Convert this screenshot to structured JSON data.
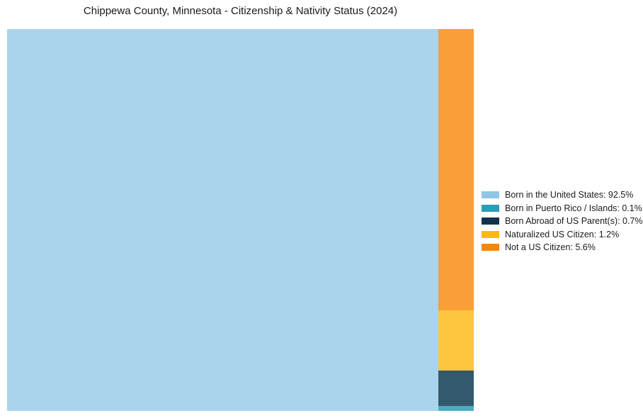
{
  "title": "Chippewa County, Minnesota - Citizenship & Nativity Status (2024)",
  "chart_data": {
    "type": "treemap",
    "title": "Chippewa County, Minnesota - Citizenship & Nativity Status (2024)",
    "legend_position": "center-right",
    "grid": false,
    "rect_alpha_note": "chart rects rendered lighter (~0.8 alpha) than legend swatches",
    "items": [
      {
        "id": "born-in-us",
        "label": "Born in the United States",
        "value": 92.5,
        "unit": "%",
        "legend_label": "Born in the United States: 92.5%",
        "fill_color": "#A9D4EC",
        "legend_color": "#8FC6E2"
      },
      {
        "id": "born-in-puerto-rico-islands",
        "label": "Born in Puerto Rico / Islands",
        "value": 0.1,
        "unit": "%",
        "legend_label": "Born in Puerto Rico / Islands: 0.1%",
        "fill_color": "#4BADBF",
        "legend_color": "#2A9DB8"
      },
      {
        "id": "born-abroad-of-us-parents",
        "label": "Born Abroad of US Parent(s)",
        "value": 0.7,
        "unit": "%",
        "legend_label": "Born Abroad of US Parent(s): 0.7%",
        "fill_color": "#35596C",
        "legend_color": "#12324B"
      },
      {
        "id": "naturalized-us-citizen",
        "label": "Naturalized US Citizen",
        "value": 1.2,
        "unit": "%",
        "legend_label": "Naturalized US Citizen: 1.2%",
        "fill_color": "#FEC53E",
        "legend_color": "#FCB90F"
      },
      {
        "id": "not-a-us-citizen",
        "label": "Not a US Citizen",
        "value": 5.6,
        "unit": "%",
        "legend_label": "Not a US Citizen: 5.6%",
        "fill_color": "#FA9E39",
        "legend_color": "#F6860F"
      }
    ],
    "layout": {
      "root_item": "born-in-us",
      "side_column_top_to_bottom": [
        "not-a-us-citizen",
        "naturalized-us-citizen",
        "born-abroad-of-us-parents",
        "born-in-puerto-rico-islands"
      ]
    },
    "legend_order": [
      "born-in-us",
      "born-in-puerto-rico-islands",
      "born-abroad-of-us-parents",
      "naturalized-us-citizen",
      "not-a-us-citizen"
    ]
  }
}
